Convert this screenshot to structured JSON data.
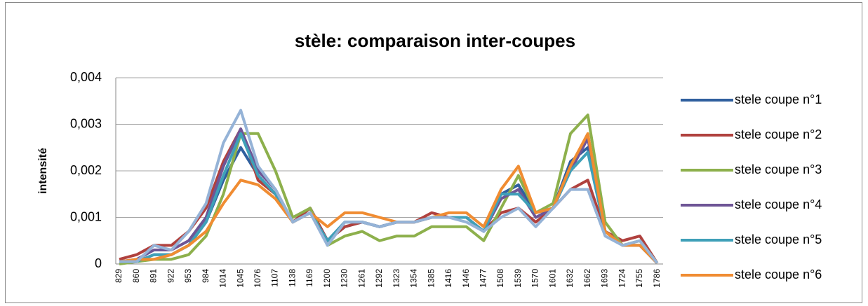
{
  "chart_data": {
    "type": "line",
    "title": "stèle: comparaison inter-coupes",
    "y_label": "intensité",
    "categories": [
      "829",
      "860",
      "891",
      "922",
      "953",
      "984",
      "1014",
      "1045",
      "1076",
      "1107",
      "1138",
      "1169",
      "1200",
      "1230",
      "1261",
      "1292",
      "1323",
      "1354",
      "1385",
      "1416",
      "1446",
      "1477",
      "1508",
      "1539",
      "1570",
      "1601",
      "1632",
      "1662",
      "1693",
      "1724",
      "1755",
      "1786"
    ],
    "ylim": [
      0,
      0.004
    ],
    "yticks": [
      0,
      {
        "value": 0.001,
        "label": "0,001"
      },
      {
        "value": 0.002,
        "label": "0,002"
      },
      {
        "value": 0.003,
        "label": "0,003"
      },
      {
        "value": 0.004,
        "label": "0,004"
      }
    ],
    "grid": true,
    "legend": "right",
    "series": [
      {
        "name": "stele coupe n°1",
        "color": "#2f5f9e",
        "values": [
          5e-05,
          5e-05,
          0.0002,
          0.0002,
          0.0004,
          0.0009,
          0.0018,
          0.0025,
          0.0019,
          0.0015,
          0.0009,
          0.0012,
          0.0005,
          0.0008,
          0.0009,
          0.0008,
          0.0009,
          0.0009,
          0.001,
          0.001,
          0.001,
          0.0007,
          0.0015,
          0.0017,
          0.0011,
          0.0012,
          0.0022,
          0.0025,
          0.0007,
          0.0004,
          0.0004,
          2e-05
        ]
      },
      {
        "name": "stele coupe n°2",
        "color": "#b0413e",
        "values": [
          0.0001,
          0.0002,
          0.0004,
          0.0004,
          0.0007,
          0.0012,
          0.0022,
          0.0029,
          0.0018,
          0.0015,
          0.0009,
          0.0012,
          0.0005,
          0.0008,
          0.0009,
          0.0008,
          0.0009,
          0.0009,
          0.0011,
          0.001,
          0.001,
          0.0007,
          0.0011,
          0.0012,
          0.0009,
          0.0012,
          0.0016,
          0.0018,
          0.0007,
          0.0005,
          0.0006,
          2e-05
        ]
      },
      {
        "name": "stele coupe n°3",
        "color": "#8db04c",
        "values": [
          0,
          5e-05,
          0.0001,
          0.0001,
          0.0002,
          0.0006,
          0.0015,
          0.0028,
          0.0028,
          0.002,
          0.001,
          0.0012,
          0.0004,
          0.0006,
          0.0007,
          0.0005,
          0.0006,
          0.0006,
          0.0008,
          0.0008,
          0.0008,
          0.0005,
          0.0012,
          0.0019,
          0.0011,
          0.0013,
          0.0028,
          0.0032,
          0.0009,
          0.0004,
          0.0005,
          2e-05
        ]
      },
      {
        "name": "stele coupe n°4",
        "color": "#6e5596",
        "values": [
          5e-05,
          0.0001,
          0.0003,
          0.0003,
          0.0005,
          0.001,
          0.0021,
          0.0029,
          0.002,
          0.0016,
          0.0009,
          0.0011,
          0.0005,
          0.0009,
          0.0009,
          0.0008,
          0.0009,
          0.0009,
          0.001,
          0.001,
          0.001,
          0.0007,
          0.0014,
          0.0016,
          0.001,
          0.0012,
          0.002,
          0.0027,
          0.0007,
          0.0004,
          0.0004,
          2e-05
        ]
      },
      {
        "name": "stele coupe n°5",
        "color": "#3fa0b8",
        "values": [
          5e-05,
          5e-05,
          0.0002,
          0.0002,
          0.0004,
          0.0009,
          0.0019,
          0.0028,
          0.0019,
          0.0015,
          0.0009,
          0.0011,
          0.0005,
          0.0009,
          0.0009,
          0.0008,
          0.0009,
          0.0009,
          0.001,
          0.001,
          0.001,
          0.0007,
          0.0015,
          0.0015,
          0.0011,
          0.0012,
          0.002,
          0.0024,
          0.0007,
          0.0004,
          0.0004,
          2e-05
        ]
      },
      {
        "name": "stele coupe n°6",
        "color": "#f08c32",
        "values": [
          5e-05,
          0.0001,
          0.0001,
          0.0002,
          0.0004,
          0.0007,
          0.0013,
          0.0018,
          0.0017,
          0.0014,
          0.0009,
          0.0011,
          0.0008,
          0.0011,
          0.0011,
          0.001,
          0.0009,
          0.0009,
          0.001,
          0.0011,
          0.0011,
          0.0008,
          0.0016,
          0.0021,
          0.0011,
          0.0012,
          0.0021,
          0.0028,
          0.0007,
          0.0004,
          0.0004,
          2e-05
        ]
      },
      {
        "color": "#95b3d7",
        "values": [
          5e-05,
          5e-05,
          0.0004,
          0.0003,
          0.0007,
          0.0013,
          0.0026,
          0.0033,
          0.0021,
          0.0016,
          0.0009,
          0.0011,
          0.0004,
          0.0009,
          0.0009,
          0.0008,
          0.0009,
          0.0009,
          0.001,
          0.001,
          0.0009,
          0.0007,
          0.001,
          0.0012,
          0.0008,
          0.0012,
          0.0016,
          0.0016,
          0.0006,
          0.0004,
          0.0005,
          2e-05
        ]
      }
    ]
  }
}
